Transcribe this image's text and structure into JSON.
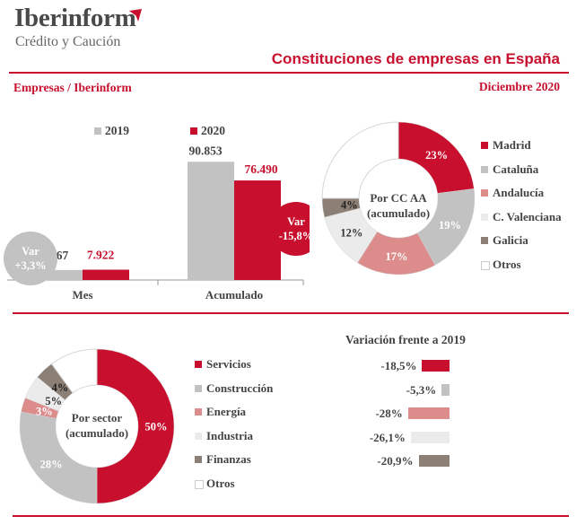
{
  "header": {
    "logo_name": "Iberinform",
    "logo_sub": "Crédito y Caución",
    "title": "Constituciones de empresas en España",
    "left_label": "Empresas / Iberinform",
    "right_label": "Diciembre 2020"
  },
  "colors": {
    "red": "#c8102e",
    "gray": "#c2c2c2",
    "pink": "#dd8c8c",
    "light": "#ebebeb",
    "brown": "#8c7f75",
    "white": "#ffffff"
  },
  "chart_data": [
    {
      "type": "bar",
      "categories": [
        "Mes",
        "Acumulado"
      ],
      "series": [
        {
          "name": "2019",
          "values": [
            7667,
            90853
          ],
          "labels": [
            "7.667",
            "90.853"
          ],
          "color": "#c2c2c2"
        },
        {
          "name": "2020",
          "values": [
            7922,
            76490
          ],
          "labels": [
            "7.922",
            "76.490"
          ],
          "color": "#c8102e"
        }
      ],
      "ylim": [
        0,
        100000
      ],
      "annotations": [
        {
          "category": "Mes",
          "line1": "Var",
          "line2": "+3,3%",
          "color": "#c2c2c2"
        },
        {
          "category": "Acumulado",
          "line1": "Var",
          "line2": "-15,8%",
          "color": "#c8102e"
        }
      ]
    },
    {
      "type": "pie",
      "center_label": [
        "Por CC AA",
        "(acumulado)"
      ],
      "slices": [
        {
          "name": "Madrid",
          "value": 23,
          "label": "23%",
          "color": "#c8102e"
        },
        {
          "name": "Cataluña",
          "value": 19,
          "label": "19%",
          "color": "#c2c2c2"
        },
        {
          "name": "Andalucía",
          "value": 17,
          "label": "17%",
          "color": "#dd8c8c"
        },
        {
          "name": "C. Valenciana",
          "value": 12,
          "label": "12%",
          "color": "#ebebeb"
        },
        {
          "name": "Galicia",
          "value": 4,
          "label": "4%",
          "color": "#8c7f75"
        },
        {
          "name": "Otros",
          "value": 25,
          "label": "",
          "color": "#ffffff"
        }
      ]
    },
    {
      "type": "pie",
      "center_label": [
        "Por sector",
        "(acumulado)"
      ],
      "slices": [
        {
          "name": "Servicios",
          "value": 50,
          "label": "50%",
          "color": "#c8102e"
        },
        {
          "name": "Construcción",
          "value": 28,
          "label": "28%",
          "color": "#c2c2c2"
        },
        {
          "name": "Energía",
          "value": 3,
          "label": "3%",
          "color": "#dd8c8c"
        },
        {
          "name": "Industria",
          "value": 5,
          "label": "5%",
          "color": "#ebebeb"
        },
        {
          "name": "Finanzas",
          "value": 4,
          "label": "4%",
          "color": "#8c7f75"
        },
        {
          "name": "Otros",
          "value": 10,
          "label": "",
          "color": "#ffffff"
        }
      ]
    },
    {
      "type": "bar",
      "title": "Variación frente a 2019",
      "categories": [
        "Servicios",
        "Construcción",
        "Energía",
        "Industria",
        "Finanzas"
      ],
      "values": [
        -18.5,
        -5.3,
        -28,
        -26.1,
        -20.9
      ],
      "labels": [
        "-18,5%",
        "-5,3%",
        "-28%",
        "-26,1%",
        "-20,9%"
      ],
      "colors": [
        "#c8102e",
        "#c2c2c2",
        "#dd8c8c",
        "#ebebeb",
        "#8c7f75"
      ]
    }
  ]
}
